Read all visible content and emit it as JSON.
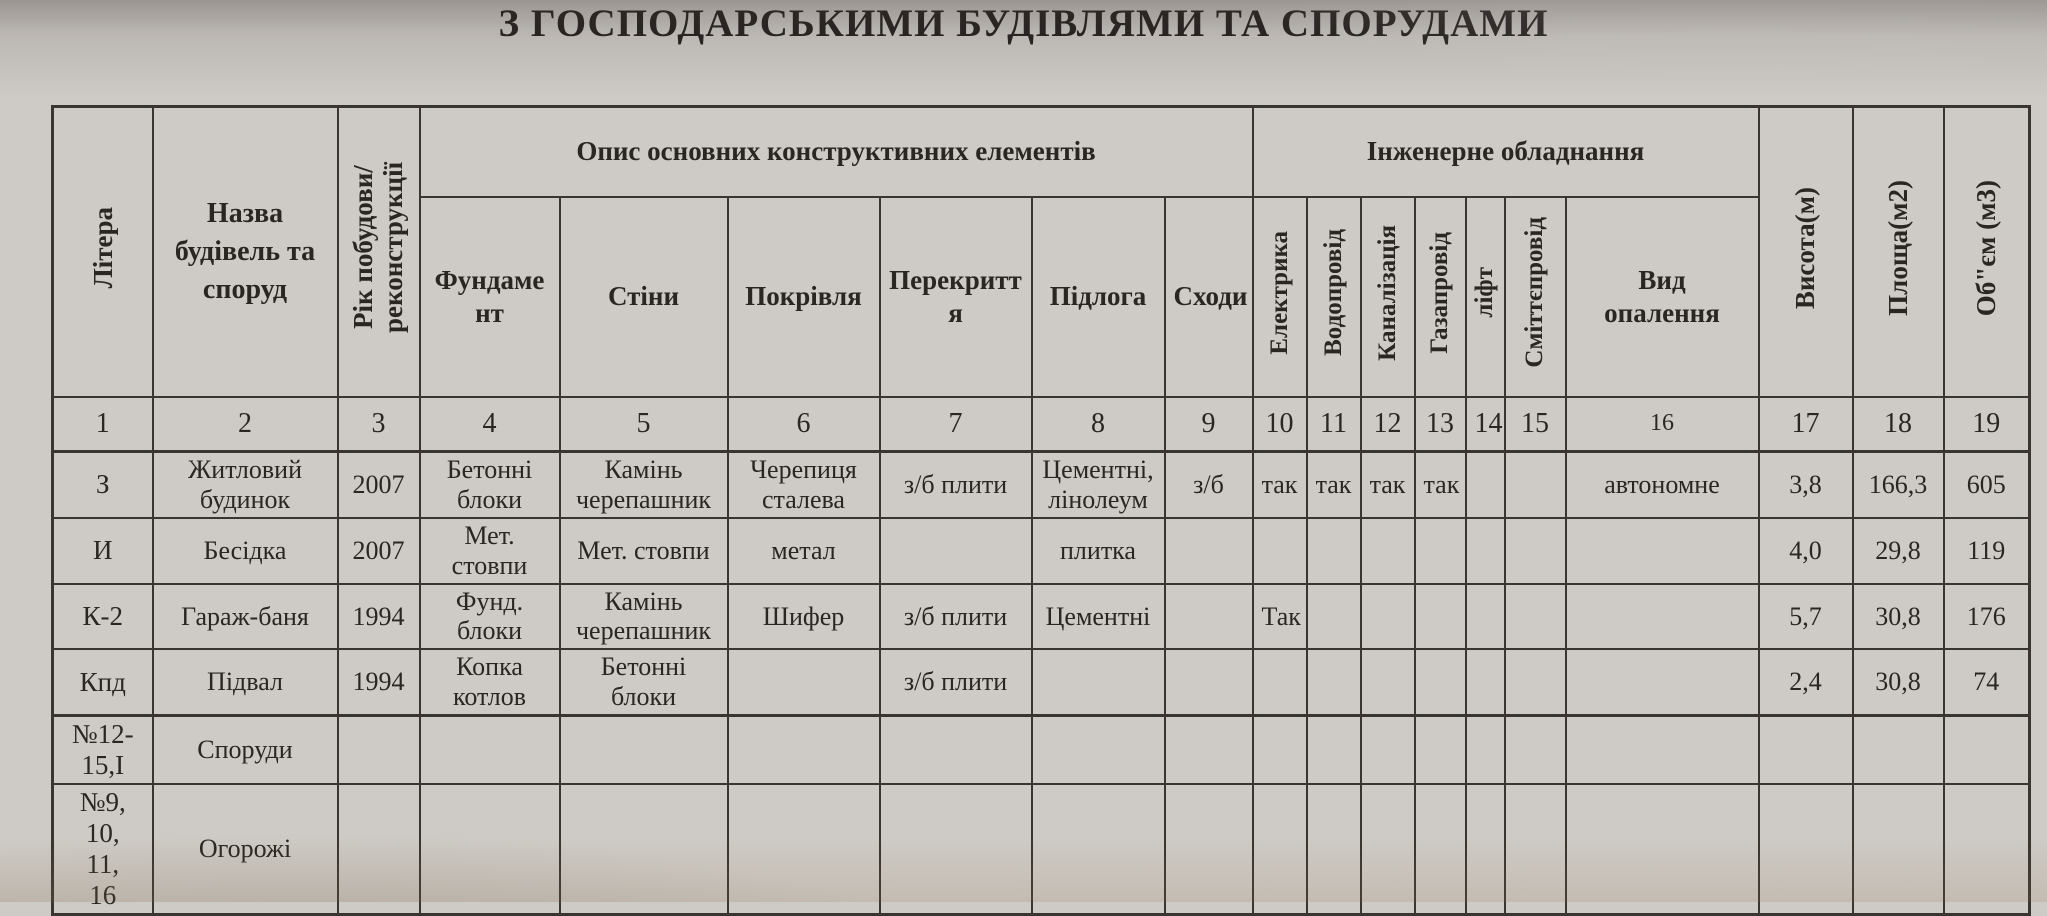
{
  "title": "З ГОСПОДАРСЬКИМИ БУДІВЛЯМИ ТА СПОРУДАМИ",
  "table": {
    "groups": {
      "construction": "Опис основних конструктивних елементів",
      "engineering": "Інженерне обладнання"
    },
    "columns": {
      "letter": "Літера",
      "name": "Назва будівель та споруд",
      "year": "Рік побудови/ реконструкції",
      "foundation": "Фундамент",
      "walls": "Стіни",
      "roof": "Покрівля",
      "slab": "Перекриття",
      "floor": "Підлога",
      "stairs": "Сходи",
      "electricity": "Електрика",
      "water": "Водопровід",
      "sewerage": "Каналізація",
      "gas": "Газапровід",
      "lift": "ліфт",
      "garbage_chute": "Сміттєпровід",
      "heating": "Вид опалення",
      "height": "Висота(м)",
      "area": "Площа(м2)",
      "volume": "Об\"єм (м3)"
    },
    "column_numbers": [
      "1",
      "2",
      "3",
      "4",
      "5",
      "6",
      "7",
      "8",
      "9",
      "10",
      "11",
      "12",
      "13",
      "14",
      "15",
      "16",
      "17",
      "18",
      "19"
    ],
    "rows": [
      [
        "З",
        "Житловий будинок",
        "2007",
        "Бетонні блоки",
        "Камінь черепашник",
        "Черепиця сталева",
        "з/б плити",
        "Цементні, лінолеум",
        "з/б",
        "так",
        "так",
        "так",
        "так",
        "",
        "",
        "автономне",
        "3,8",
        "166,3",
        "605"
      ],
      [
        "И",
        "Бесідка",
        "2007",
        "Мет. стовпи",
        "Мет. стовпи",
        "метал",
        "",
        "плитка",
        "",
        "",
        "",
        "",
        "",
        "",
        "",
        "",
        "4,0",
        "29,8",
        "119"
      ],
      [
        "К-2",
        "Гараж-баня",
        "1994",
        "Фунд. блоки",
        "Камінь черепашник",
        "Шифер",
        "з/б плити",
        "Цементні",
        "",
        "Так",
        "",
        "",
        "",
        "",
        "",
        "",
        "5,7",
        "30,8",
        "176"
      ],
      [
        "Кпд",
        "Підвал",
        "1994",
        "Копка котлов",
        "Бетонні блоки",
        "",
        "з/б плити",
        "",
        "",
        "",
        "",
        "",
        "",
        "",
        "",
        "",
        "2,4",
        "30,8",
        "74"
      ],
      [
        "№12-\n15,I",
        "Споруди",
        "",
        "",
        "",
        "",
        "",
        "",
        "",
        "",
        "",
        "",
        "",
        "",
        "",
        "",
        "",
        "",
        ""
      ],
      [
        "№9,\n10,\n11,\n16",
        "Огорожі",
        "",
        "",
        "",
        "",
        "",
        "",
        "",
        "",
        "",
        "",
        "",
        "",
        "",
        "",
        "",
        "",
        ""
      ]
    ]
  }
}
